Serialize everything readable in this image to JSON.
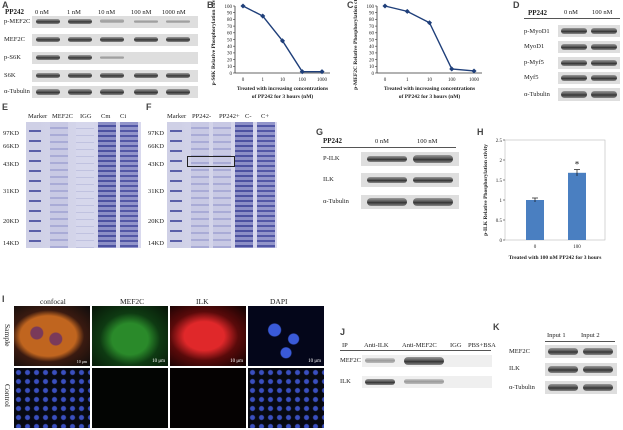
{
  "panels": {
    "A": "A",
    "B": "B",
    "C": "C",
    "D": "D",
    "E": "E",
    "F": "F",
    "G": "G",
    "H": "H",
    "I": "I",
    "J": "J",
    "K": "K"
  },
  "panelA": {
    "header": "PP242",
    "cols": [
      "0 nM",
      "1 nM",
      "10 nM",
      "100 nM",
      "1000 nM"
    ],
    "rows": [
      "p-MEF2C",
      "MEF2C",
      "p-S6K",
      "S6K",
      "α-Tubulin"
    ]
  },
  "panelD": {
    "header": "PP242",
    "cols": [
      "0 nM",
      "100 nM"
    ],
    "rows": [
      "p-MyoD1",
      "MyoD1",
      "p-Myf5",
      "Myf5",
      "α-Tubulin"
    ]
  },
  "panelE": {
    "lanes": [
      "Marker",
      "MEF2C",
      "IGG",
      "Cm",
      "Ci"
    ],
    "markers": [
      "97KD",
      "66KD",
      "43KD",
      "31KD",
      "20KD",
      "14KD"
    ]
  },
  "panelF": {
    "lanes": [
      "Marker",
      "PP242-",
      "PP242+",
      "C-",
      "C+"
    ],
    "markers": [
      "97KD",
      "66KD",
      "43KD",
      "31KD",
      "20KD",
      "14KD"
    ]
  },
  "panelG": {
    "header": "PP242",
    "cols": [
      "0 nM",
      "100 nM"
    ],
    "rows": [
      "P-ILK",
      "ILK",
      "α-Tubulin"
    ]
  },
  "panelI": {
    "cols": [
      "confocal",
      "MEF2C",
      "ILK",
      "DAPI"
    ],
    "rows": [
      "Sample",
      "Control"
    ],
    "scalebar": "10 μm"
  },
  "panelJ": {
    "ip": "IP",
    "cols": [
      "Anti-ILK",
      "Anti-MEF2C",
      "IGG",
      "PBS+BSA"
    ],
    "rows": [
      "MEF2C",
      "ILK"
    ]
  },
  "panelK": {
    "cols": [
      "Input 1",
      "Input 2"
    ],
    "rows": [
      "MEF2C",
      "ILK",
      "α-Tubulin"
    ]
  },
  "chart_data": [
    {
      "type": "line",
      "panel": "B",
      "categories": [
        "0",
        "1",
        "10",
        "100",
        "1000"
      ],
      "values": [
        100,
        85,
        48,
        2,
        2
      ],
      "ylim": [
        0,
        100
      ],
      "yticks": [
        0,
        10,
        20,
        30,
        40,
        50,
        60,
        70,
        80,
        90,
        100
      ],
      "ylabel": "p-S6K Relative Phosphorylation ctivity",
      "xlabel": [
        "Treated with increasing concentrations",
        "of PP242 for 3 hours (nM)"
      ],
      "color": "#1f3f7a"
    },
    {
      "type": "line",
      "panel": "C",
      "categories": [
        "0",
        "1",
        "10",
        "100",
        "1000"
      ],
      "values": [
        100,
        92,
        75,
        6,
        3
      ],
      "ylim": [
        0,
        100
      ],
      "yticks": [
        0,
        10,
        20,
        30,
        40,
        50,
        60,
        70,
        80,
        90,
        100
      ],
      "ylabel": "p-MEF2C Relative Phosphorylation ctivity",
      "xlabel": [
        "Treated with increasing concentrations",
        "of PP242 for 3 hours (nM)"
      ],
      "color": "#1f3f7a"
    },
    {
      "type": "bar",
      "panel": "H",
      "categories": [
        "0",
        "100"
      ],
      "values": [
        1.0,
        1.68
      ],
      "errors": [
        0.05,
        0.08
      ],
      "significance": [
        "",
        "*"
      ],
      "ylim": [
        0,
        2.5
      ],
      "yticks": [
        0,
        0.5,
        1,
        1.5,
        2,
        2.5
      ],
      "ylabel": "p-ILK Relative Phosphorylation ctivity",
      "xlabel": "Treated with 100 nM PP242 for 3 hours",
      "color": "#4a7fc1"
    }
  ]
}
